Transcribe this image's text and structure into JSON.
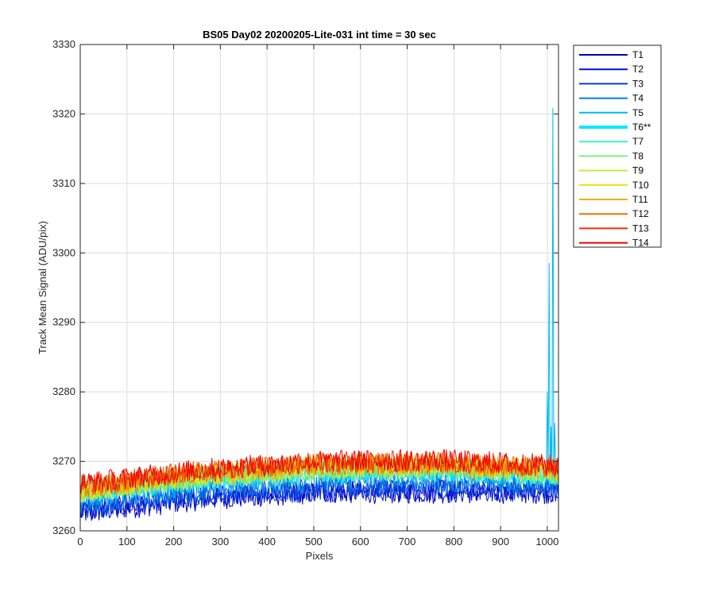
{
  "chart_data": {
    "type": "line",
    "title": "BS05 Day02 20200205-Lite-031 int time = 30 sec",
    "xlabel": "Pixels",
    "ylabel": "Track Mean Signal (ADU/pix)",
    "xlim": [
      0,
      1024
    ],
    "ylim": [
      3260,
      3330
    ],
    "xticks": [
      0,
      100,
      200,
      300,
      400,
      500,
      600,
      700,
      800,
      900,
      1000
    ],
    "yticks": [
      3260,
      3270,
      3280,
      3290,
      3300,
      3310,
      3320,
      3330
    ],
    "grid": true,
    "legend_position": "outside-top-right",
    "series": [
      {
        "name": "T1",
        "color": "#0000b8",
        "base": [
          3262.5,
          3264.5,
          3265.5,
          3265.5,
          3265.5
        ],
        "noise": 1.6,
        "highlight": false
      },
      {
        "name": "T2",
        "color": "#0010d8",
        "base": [
          3262.8,
          3264.8,
          3265.8,
          3265.8,
          3265.8
        ],
        "noise": 1.6,
        "highlight": false
      },
      {
        "name": "T3",
        "color": "#0040e0",
        "base": [
          3263.2,
          3265.2,
          3266.2,
          3266.2,
          3266.0
        ],
        "noise": 1.6,
        "highlight": false
      },
      {
        "name": "T4",
        "color": "#0080e8",
        "base": [
          3264.0,
          3266.0,
          3267.0,
          3267.0,
          3266.8
        ],
        "noise": 1.6,
        "highlight": false
      },
      {
        "name": "T5",
        "color": "#00b8f0",
        "base": [
          3264.8,
          3266.8,
          3268.0,
          3268.0,
          3267.5
        ],
        "noise": 1.6,
        "highlight": false,
        "spikes": [
          [
            1000,
            3280.0
          ],
          [
            1004,
            3298.5
          ],
          [
            1008,
            3275.0
          ],
          [
            1012,
            3320.8
          ],
          [
            1016,
            3275.5
          ]
        ]
      },
      {
        "name": "T6**",
        "color": "#00e8ff",
        "base": [
          3265.5,
          3267.5,
          3268.8,
          3268.8,
          3268.2
        ],
        "noise": 1.6,
        "highlight": true
      },
      {
        "name": "T7",
        "color": "#40f0c0",
        "base": [
          3265.2,
          3267.5,
          3268.6,
          3268.8,
          3268.0
        ],
        "noise": 1.6,
        "highlight": false
      },
      {
        "name": "T8",
        "color": "#80f080",
        "base": [
          3265.4,
          3267.6,
          3268.8,
          3269.0,
          3268.2
        ],
        "noise": 1.6,
        "highlight": false
      },
      {
        "name": "T9",
        "color": "#c0f040",
        "base": [
          3265.6,
          3267.8,
          3269.0,
          3269.2,
          3268.4
        ],
        "noise": 1.6,
        "highlight": false
      },
      {
        "name": "T10",
        "color": "#f0e000",
        "base": [
          3265.8,
          3268.0,
          3269.2,
          3269.4,
          3268.6
        ],
        "noise": 1.6,
        "highlight": false
      },
      {
        "name": "T11",
        "color": "#f0b000",
        "base": [
          3266.0,
          3268.2,
          3269.4,
          3269.6,
          3268.8
        ],
        "noise": 1.6,
        "highlight": false
      },
      {
        "name": "T12",
        "color": "#f07000",
        "base": [
          3266.3,
          3268.4,
          3269.6,
          3269.8,
          3269.0
        ],
        "noise": 1.6,
        "highlight": false,
        "spikes": [
          [
            575,
            3275.8
          ]
        ]
      },
      {
        "name": "T13",
        "color": "#f03000",
        "base": [
          3266.5,
          3268.6,
          3269.8,
          3270.0,
          3269.2
        ],
        "noise": 1.6,
        "highlight": false
      },
      {
        "name": "T14",
        "color": "#f00000",
        "base": [
          3266.8,
          3268.8,
          3270.0,
          3270.2,
          3269.4
        ],
        "noise": 1.6,
        "highlight": false
      }
    ]
  }
}
